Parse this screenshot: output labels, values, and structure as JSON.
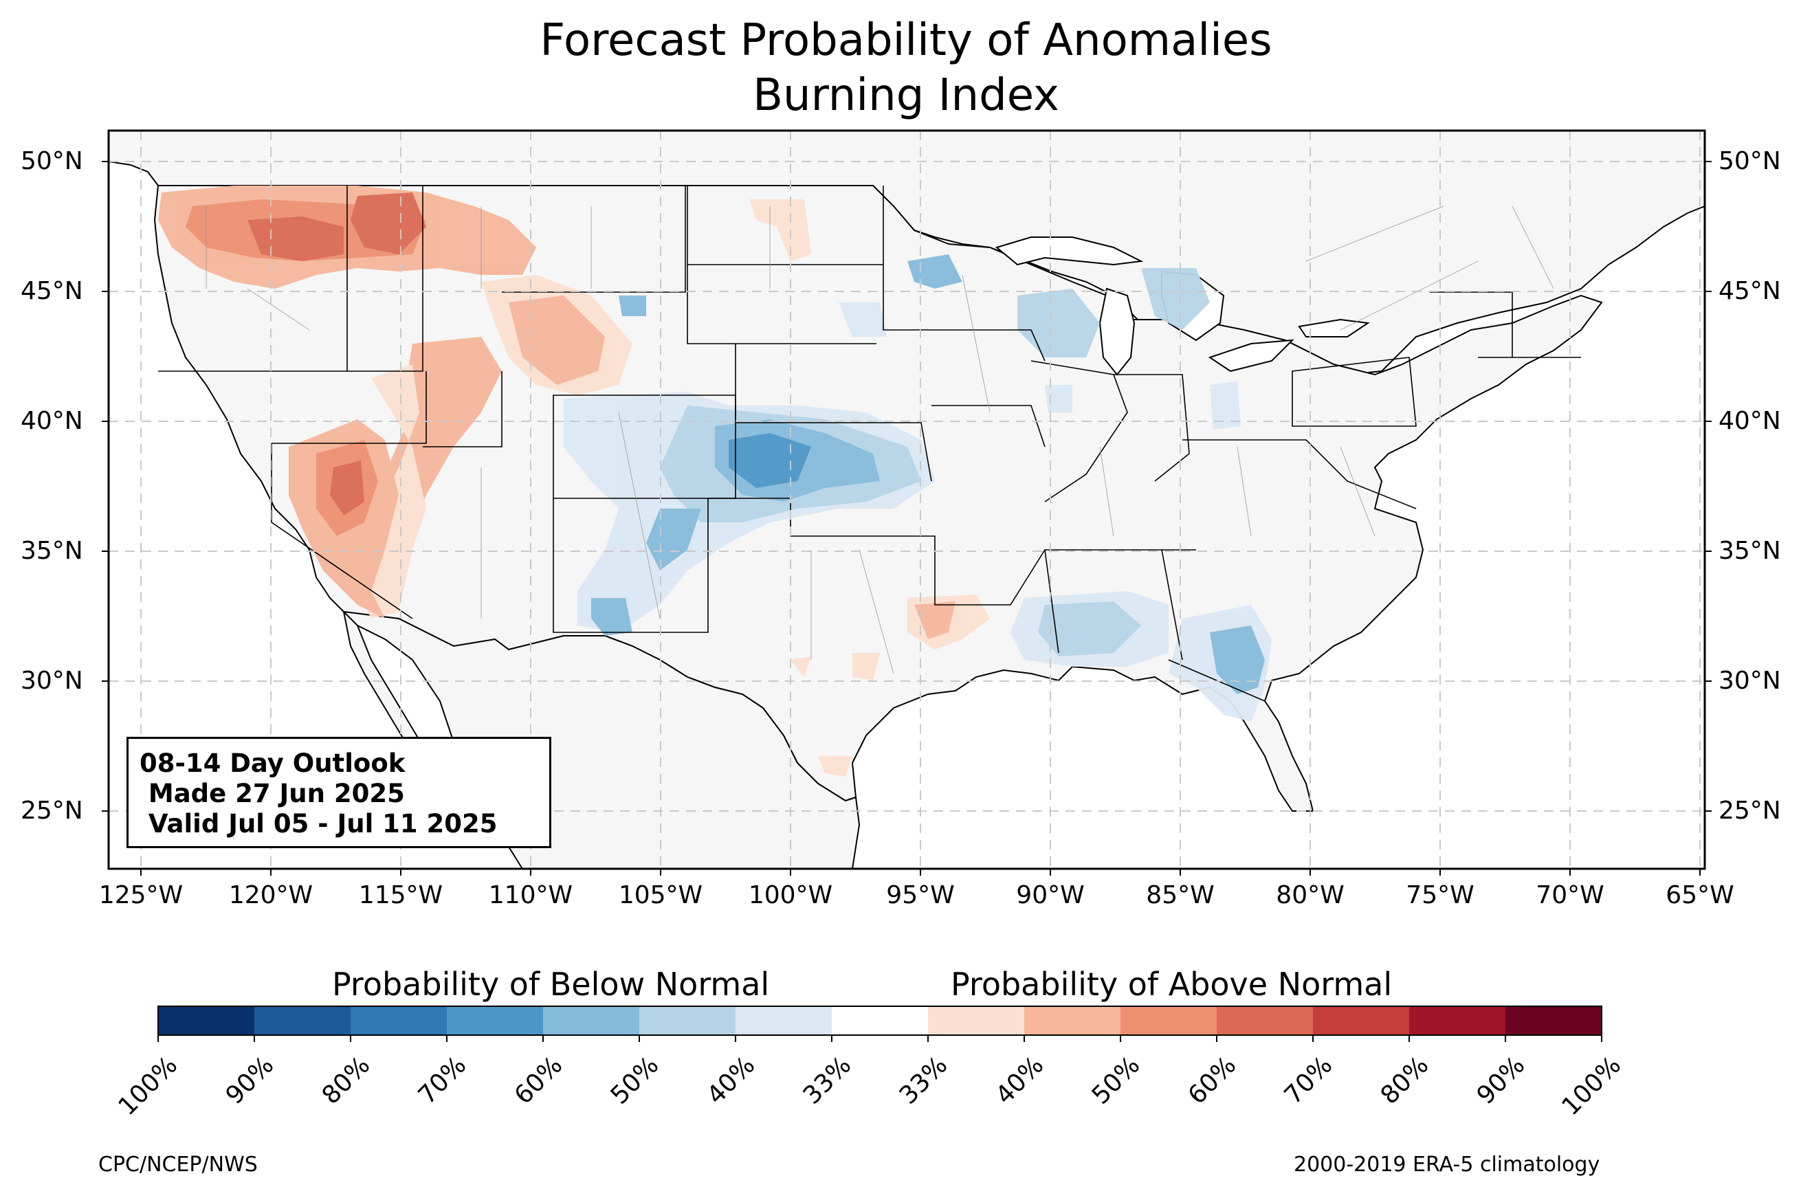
{
  "title": {
    "line1": "Forecast Probability of Anomalies",
    "line2": "Burning Index"
  },
  "axes": {
    "lat_labels": [
      "50°N",
      "45°N",
      "40°N",
      "35°N",
      "30°N",
      "25°N"
    ],
    "lat_values": [
      50,
      45,
      40,
      35,
      30,
      25
    ],
    "lon_labels": [
      "125°W",
      "120°W",
      "115°W",
      "110°W",
      "105°W",
      "100°W",
      "95°W",
      "90°W",
      "85°W",
      "80°W",
      "75°W",
      "70°W",
      "65°W"
    ],
    "lon_values": [
      -125,
      -120,
      -115,
      -110,
      -105,
      -100,
      -95,
      -90,
      -85,
      -80,
      -75,
      -70,
      -65
    ],
    "lon_range": [
      -126.2,
      -64.8
    ],
    "lat_range": [
      22.8,
      51.2
    ],
    "gridlines": true
  },
  "info_box": {
    "line1": "08-14 Day Outlook",
    "line2": " Made 27 Jun 2025",
    "line3": " Valid Jul 05 - Jul 11 2025"
  },
  "colorbar": {
    "below_label": "Probability of Below Normal",
    "above_label": "Probability of Above Normal",
    "tick_labels": [
      "100%",
      "90%",
      "80%",
      "70%",
      "60%",
      "50%",
      "40%",
      "33%",
      "33%",
      "40%",
      "50%",
      "60%",
      "70%",
      "80%",
      "90%",
      "100%"
    ],
    "colors": [
      "#08306b",
      "#1c5a9c",
      "#2e79b6",
      "#4c97c8",
      "#86bcdb",
      "#b6d4e8",
      "#dbe8f3",
      "#ffffff",
      "#fbe0d1",
      "#f5b69b",
      "#ed9070",
      "#da6a53",
      "#c53c3b",
      "#a31328",
      "#6b0220"
    ]
  },
  "credits": {
    "left": "CPC/NCEP/NWS",
    "right": "2000-2019 ERA-5 climatology"
  },
  "map_data": {
    "land_color": "#f5f6f5",
    "regions": [
      {
        "name": "Pacific Northwest",
        "anomaly": "above",
        "category": "50-60%"
      },
      {
        "name": "Northern Idaho / NW Montana",
        "anomaly": "above",
        "category": "60-70%"
      },
      {
        "name": "California Sierra Nevada",
        "anomaly": "above",
        "category": "50-70%"
      },
      {
        "name": "Nevada / Utah",
        "anomaly": "above",
        "category": "40-50%"
      },
      {
        "name": "Wyoming",
        "anomaly": "above",
        "category": "33-50%"
      },
      {
        "name": "Central Plains (KS/CO/NE)",
        "anomaly": "below",
        "category": "50-70%"
      },
      {
        "name": "New Mexico / Arizona",
        "anomaly": "below",
        "category": "40-60%"
      },
      {
        "name": "Gulf Coast (LA/MS/AL)",
        "anomaly": "below",
        "category": "40-50%"
      },
      {
        "name": "Georgia / Northern Florida",
        "anomaly": "below",
        "category": "40-60%"
      },
      {
        "name": "Upper Midwest / Michigan",
        "anomaly": "below",
        "category": "33-50%"
      },
      {
        "name": "East Texas / Louisiana",
        "anomaly": "above",
        "category": "40-50%"
      }
    ]
  }
}
